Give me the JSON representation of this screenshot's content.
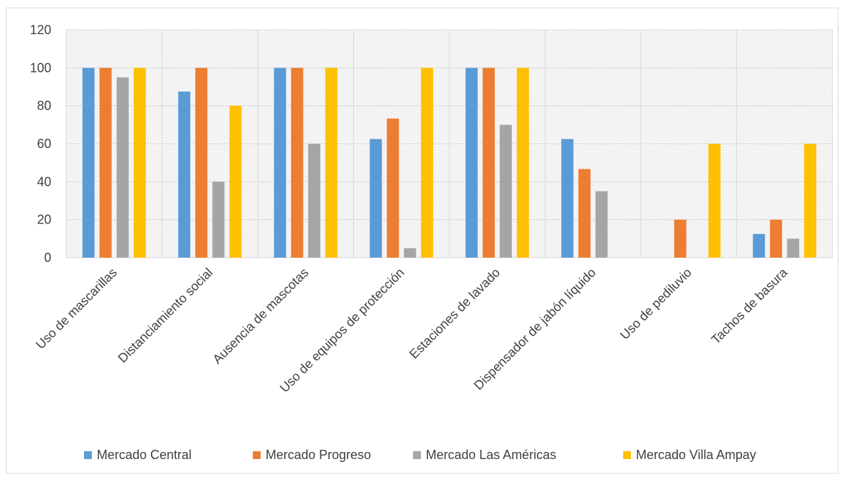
{
  "chart_data": {
    "type": "bar",
    "title": "",
    "xlabel": "",
    "ylabel": "",
    "ylim": [
      0,
      120
    ],
    "yticks": [
      0,
      20,
      40,
      60,
      80,
      100,
      120
    ],
    "grid": true,
    "legend_position": "bottom",
    "categories": [
      "Uso de mascarillas",
      "Distanciamiento social",
      "Ausencia de mascotas",
      "Uso de equipos de protección",
      "Estaciones de lavado",
      "Dispensador de jabón líquido",
      "Uso de pediluvio",
      "Tachos de basura"
    ],
    "series": [
      {
        "name": "Mercado Central",
        "color": "#5B9BD5",
        "values": [
          100,
          87.5,
          100,
          62.5,
          100,
          62.5,
          0,
          12.5
        ]
      },
      {
        "name": "Mercado Progreso",
        "color": "#ED7D31",
        "values": [
          100,
          100,
          100,
          73.3,
          100,
          46.7,
          20,
          20
        ]
      },
      {
        "name": "Mercado Las Américas",
        "color": "#A5A5A5",
        "values": [
          95,
          40,
          60,
          5,
          70,
          35,
          0,
          10
        ]
      },
      {
        "name": "Mercado Villa Ampay",
        "color": "#FFC000",
        "values": [
          100,
          80,
          100,
          100,
          100,
          0,
          60,
          60
        ]
      }
    ]
  }
}
